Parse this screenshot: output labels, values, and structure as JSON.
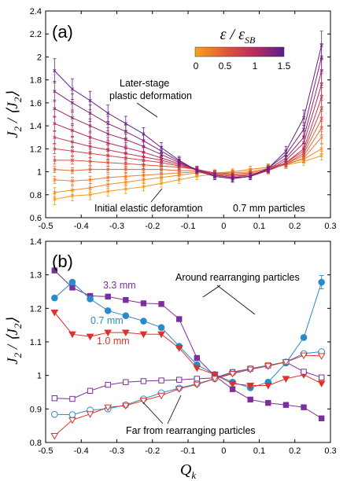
{
  "chart_data": [
    {
      "panel_label": "(a)",
      "type": "line",
      "ylabel": "J₂ / ⟨J₂⟩",
      "xlabel": "",
      "xlim": [
        -0.5,
        0.3
      ],
      "ylim": [
        0.6,
        2.4
      ],
      "x_ticks": [
        "-0.5",
        "-0.4",
        "-0.3",
        "-0.2",
        "-0.1",
        "0",
        "0.1",
        "0.2",
        "0.3"
      ],
      "y_ticks": [
        "0.6",
        "0.8",
        "1",
        "1.2",
        "1.4",
        "1.6",
        "1.8",
        "2",
        "2.2",
        "2.4"
      ],
      "x": [
        -0.475,
        -0.425,
        -0.375,
        -0.325,
        -0.275,
        -0.225,
        -0.175,
        -0.125,
        -0.075,
        -0.025,
        0.025,
        0.075,
        0.125,
        0.175,
        0.225,
        0.275
      ],
      "colorbar": {
        "label": "ε / ε_SB",
        "ticks": [
          "0",
          "0.5",
          "1",
          "1.5"
        ],
        "range": [
          0,
          1.5
        ],
        "colors": [
          "#f7a21b",
          "#e0563a",
          "#b52a5e",
          "#5a1f8c"
        ]
      },
      "series": [
        {
          "strain": 0.05,
          "values": [
            0.76,
            0.79,
            0.8,
            0.83,
            0.85,
            0.87,
            0.9,
            0.93,
            0.96,
            0.98,
            1.0,
            1.02,
            1.04,
            1.06,
            1.09,
            1.14
          ]
        },
        {
          "strain": 0.15,
          "values": [
            0.82,
            0.84,
            0.86,
            0.89,
            0.91,
            0.93,
            0.95,
            0.97,
            0.99,
            0.99,
            1.0,
            1.02,
            1.04,
            1.07,
            1.11,
            1.2
          ]
        },
        {
          "strain": 0.25,
          "values": [
            0.93,
            0.92,
            0.93,
            0.95,
            0.96,
            0.97,
            0.98,
            0.99,
            1.0,
            0.99,
            0.99,
            1.0,
            1.03,
            1.06,
            1.12,
            1.3
          ]
        },
        {
          "strain": 0.4,
          "values": [
            1.02,
            1.01,
            1.02,
            1.02,
            1.02,
            1.02,
            1.02,
            1.01,
            1.01,
            0.99,
            0.98,
            0.99,
            1.02,
            1.07,
            1.14,
            1.38
          ]
        },
        {
          "strain": 0.55,
          "values": [
            1.1,
            1.1,
            1.09,
            1.08,
            1.07,
            1.06,
            1.05,
            1.04,
            1.02,
            0.99,
            0.97,
            0.98,
            1.01,
            1.07,
            1.16,
            1.46
          ]
        },
        {
          "strain": 0.7,
          "values": [
            1.2,
            1.18,
            1.16,
            1.14,
            1.12,
            1.1,
            1.08,
            1.05,
            1.02,
            0.98,
            0.96,
            0.97,
            1.01,
            1.08,
            1.18,
            1.55
          ]
        },
        {
          "strain": 0.85,
          "values": [
            1.3,
            1.26,
            1.22,
            1.19,
            1.16,
            1.13,
            1.1,
            1.06,
            1.02,
            0.98,
            0.96,
            0.97,
            1.01,
            1.08,
            1.2,
            1.65
          ]
        },
        {
          "strain": 1.0,
          "values": [
            1.42,
            1.36,
            1.3,
            1.25,
            1.21,
            1.17,
            1.12,
            1.07,
            1.02,
            0.97,
            0.95,
            0.96,
            1.01,
            1.1,
            1.25,
            1.76
          ]
        },
        {
          "strain": 1.15,
          "values": [
            1.55,
            1.47,
            1.4,
            1.33,
            1.28,
            1.22,
            1.15,
            1.08,
            1.02,
            0.97,
            0.95,
            0.96,
            1.02,
            1.12,
            1.3,
            1.88
          ]
        },
        {
          "strain": 1.3,
          "values": [
            1.7,
            1.6,
            1.51,
            1.42,
            1.35,
            1.27,
            1.18,
            1.09,
            1.01,
            0.96,
            0.94,
            0.96,
            1.03,
            1.15,
            1.37,
            2.0
          ]
        },
        {
          "strain": 1.45,
          "values": [
            1.88,
            1.72,
            1.62,
            1.51,
            1.42,
            1.33,
            1.21,
            1.1,
            1.01,
            0.96,
            0.94,
            0.96,
            1.03,
            1.18,
            1.47,
            2.1
          ]
        }
      ],
      "annotations": [
        "Later-stage",
        "plastic deformation",
        "Initial elastic deforamtion",
        "0.7 mm particles"
      ]
    },
    {
      "panel_label": "(b)",
      "type": "line",
      "ylabel": "J₂ / ⟨J₂⟩",
      "xlabel": "Q_k",
      "xlim": [
        -0.5,
        0.3
      ],
      "ylim": [
        0.8,
        1.4
      ],
      "x_ticks": [
        "-0.5",
        "-0.4",
        "-0.3",
        "-0.2",
        "-0.1",
        "0",
        "0.1",
        "0.2",
        "0.3"
      ],
      "y_ticks": [
        "0.8",
        "0.9",
        "1",
        "1.1",
        "1.2",
        "1.3",
        "1.4"
      ],
      "x": [
        -0.475,
        -0.425,
        -0.375,
        -0.325,
        -0.275,
        -0.225,
        -0.175,
        -0.125,
        -0.075,
        -0.025,
        0.025,
        0.075,
        0.125,
        0.175,
        0.225,
        0.275
      ],
      "series": [
        {
          "name": "3.3 mm",
          "marker": "square",
          "filled": true,
          "color": "#7b2f9c",
          "values": [
            1.313,
            1.262,
            1.237,
            1.235,
            1.225,
            1.215,
            1.213,
            1.168,
            1.052,
            0.999,
            0.959,
            0.928,
            0.918,
            0.912,
            0.905,
            0.872
          ]
        },
        {
          "name": "0.7 mm",
          "marker": "circle",
          "filled": true,
          "color": "#2a8cc6",
          "values": [
            1.231,
            1.278,
            1.228,
            1.193,
            1.178,
            1.162,
            1.143,
            1.087,
            1.032,
            1.003,
            0.98,
            0.963,
            0.98,
            1.037,
            1.113,
            1.278
          ]
        },
        {
          "name": "1.0 mm",
          "marker": "triangle-down",
          "filled": true,
          "color": "#e0302a",
          "values": [
            1.188,
            1.123,
            1.116,
            1.128,
            1.128,
            1.123,
            1.123,
            1.082,
            1.022,
            1.003,
            0.975,
            0.97,
            0.97,
            0.99,
            1.002,
            0.976
          ]
        },
        {
          "name": "",
          "marker": "square",
          "filled": false,
          "color": "#7b2f9c",
          "values": [
            0.932,
            0.93,
            0.954,
            0.972,
            0.98,
            0.983,
            0.985,
            0.987,
            0.99,
            0.993,
            1.01,
            1.02,
            1.03,
            1.04,
            1.011,
            0.994
          ]
        },
        {
          "name": "",
          "marker": "circle",
          "filled": false,
          "color": "#2a8cc6",
          "values": [
            0.884,
            0.883,
            0.897,
            0.9,
            0.912,
            0.93,
            0.948,
            0.962,
            0.975,
            0.99,
            1.008,
            1.02,
            1.03,
            1.04,
            1.065,
            1.071
          ]
        },
        {
          "name": "",
          "marker": "triangle-down",
          "filled": false,
          "color": "#e0302a",
          "values": [
            0.82,
            0.867,
            0.885,
            0.905,
            0.91,
            0.925,
            0.94,
            0.96,
            0.973,
            0.99,
            1.005,
            1.018,
            1.028,
            1.04,
            1.06,
            1.058
          ]
        }
      ],
      "error_bar_last_filled_circle": 0.02,
      "annotations": [
        "3.3 mm",
        "0.7 mm",
        "1.0 mm",
        "Around rearranging particles",
        "Far from rearranging particles"
      ]
    }
  ]
}
